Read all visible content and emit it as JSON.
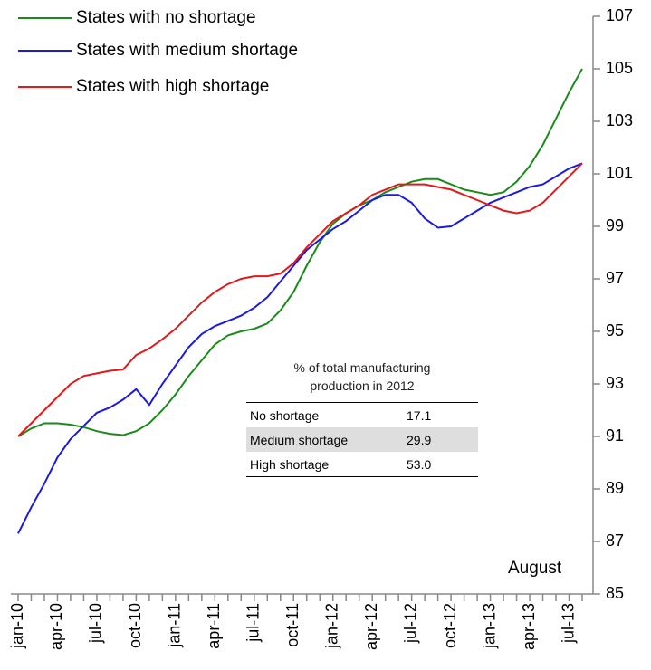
{
  "chart_data": {
    "type": "line",
    "categories": [
      "jan-10",
      null,
      null,
      "apr-10",
      null,
      null,
      "jul-10",
      null,
      null,
      "oct-10",
      null,
      null,
      "jan-11",
      null,
      null,
      "apr-11",
      null,
      null,
      "jul-11",
      null,
      null,
      "oct-11",
      null,
      null,
      "jan-12",
      null,
      null,
      "apr-12",
      null,
      null,
      "jul-12",
      null,
      null,
      "oct-12",
      null,
      null,
      "jan-13",
      null,
      null,
      "apr-13",
      null,
      null,
      "jul-13",
      null
    ],
    "series": [
      {
        "name": "States with no shortage",
        "color": "#1a8a1a",
        "values": [
          91.0,
          91.3,
          91.5,
          91.5,
          91.45,
          91.35,
          91.2,
          91.1,
          91.05,
          91.2,
          91.5,
          92.0,
          92.6,
          93.3,
          93.9,
          94.5,
          94.85,
          95.0,
          95.1,
          95.3,
          95.8,
          96.5,
          97.5,
          98.4,
          99.1,
          99.5,
          99.8,
          100.0,
          100.3,
          100.5,
          100.7,
          100.8,
          100.8,
          100.6,
          100.4,
          100.3,
          100.2,
          100.3,
          100.7,
          101.3,
          102.1,
          103.1,
          104.1,
          105.0
        ]
      },
      {
        "name": "States with medium shortage",
        "color": "#1a1ae0",
        "values": [
          87.3,
          88.3,
          89.2,
          90.2,
          90.9,
          91.4,
          91.9,
          92.1,
          92.4,
          92.8,
          92.2,
          93.0,
          93.7,
          94.4,
          94.9,
          95.2,
          95.4,
          95.6,
          95.9,
          96.3,
          96.9,
          97.5,
          98.1,
          98.5,
          98.9,
          99.2,
          99.6,
          100.0,
          100.2,
          100.2,
          99.9,
          99.3,
          98.95,
          99.0,
          99.3,
          99.6,
          99.9,
          100.1,
          100.3,
          100.5,
          100.6,
          100.9,
          101.2,
          101.4
        ]
      },
      {
        "name": "States with high shortage",
        "color": "#e01a1a",
        "values": [
          91.0,
          91.5,
          92.0,
          92.5,
          93.0,
          93.3,
          93.4,
          93.5,
          93.55,
          94.1,
          94.35,
          94.7,
          95.1,
          95.6,
          96.1,
          96.5,
          96.8,
          97.0,
          97.1,
          97.1,
          97.2,
          97.6,
          98.2,
          98.7,
          99.2,
          99.5,
          99.8,
          100.2,
          100.4,
          100.6,
          100.6,
          100.6,
          100.5,
          100.4,
          100.2,
          100.0,
          99.8,
          99.6,
          99.5,
          99.6,
          99.9,
          100.4,
          100.9,
          101.4
        ]
      }
    ],
    "ylim": [
      85,
      107
    ],
    "yticks": [
      85,
      87,
      89,
      91,
      93,
      95,
      97,
      99,
      101,
      103,
      105,
      107
    ],
    "grid": false,
    "legend": "upper left",
    "annotation": "August",
    "table": {
      "title": "% of total manufacturing production in 2012",
      "rows": [
        [
          "No shortage",
          "17.1"
        ],
        [
          "Medium shortage",
          "29.9"
        ],
        [
          "High shortage",
          "53.0"
        ]
      ]
    }
  }
}
